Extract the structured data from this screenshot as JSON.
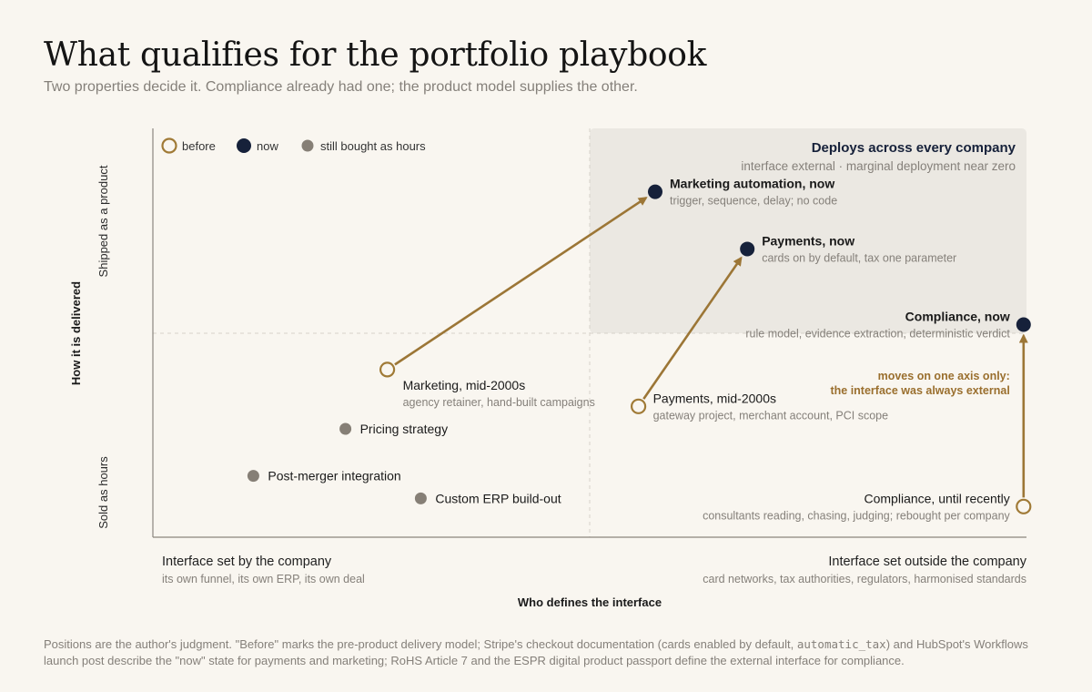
{
  "header": {
    "title": "What qualifies for the portfolio playbook",
    "subtitle": "Two properties decide it. Compliance already had one; the product model supplies the other."
  },
  "footnote": {
    "part1": "Positions are the author's judgment. \"Before\" marks the pre-product delivery model; Stripe's checkout documentation (cards enabled by default, ",
    "code": "automatic_tax",
    "part2": ") and HubSpot's Workflows launch post describe the \"now\" state for payments and marketing; RoHS Article 7 and the ESPR digital product passport define the external interface for compliance."
  },
  "colors": {
    "before": "#a07a36",
    "now": "#16213a",
    "hours": "#867f76",
    "arrow": "#9c7636",
    "annotation": "#9a6f2e",
    "quadrant": "#ebe8e2"
  },
  "chart_data": {
    "type": "scatter",
    "xlabel": "Who defines the interface",
    "ylabel": "How it is delivered",
    "x_scale": [
      "Interface set by the company",
      "Interface set outside the company"
    ],
    "y_scale": [
      "Sold as hours",
      "Shipped as a product"
    ],
    "x_ends": [
      {
        "label": "Interface set by the company",
        "sub": "its own funnel, its own ERP, its own deal"
      },
      {
        "label": "Interface set outside the company",
        "sub": "card networks, tax authorities, regulators, harmonised standards"
      }
    ],
    "y_ends": {
      "low": "Sold as hours",
      "high": "Shipped as a product"
    },
    "legend": {
      "position": "top-left",
      "items": [
        {
          "key": "before",
          "label": "before"
        },
        {
          "key": "now",
          "label": "now"
        },
        {
          "key": "hours",
          "label": "still bought as hours"
        }
      ]
    },
    "quadrant": {
      "title": "Deploys across every company",
      "sub": "interface external · marginal deployment near zero"
    },
    "points": [
      {
        "id": "marketing-now",
        "kind": "now",
        "x": 0.6,
        "y": 0.845,
        "label": "Marketing automation, now",
        "sub": "trigger, sequence, delay; no code",
        "anchor": "right"
      },
      {
        "id": "payments-now",
        "kind": "now",
        "x": 0.71,
        "y": 0.705,
        "label": "Payments, now",
        "sub": "cards on by default, tax one parameter",
        "anchor": "right"
      },
      {
        "id": "compliance-now",
        "kind": "now",
        "x": 1.04,
        "y": 0.52,
        "label": "Compliance, now",
        "sub": "rule model, evidence extraction, deterministic verdict",
        "anchor": "left"
      },
      {
        "id": "marketing-before",
        "kind": "before",
        "x": 0.28,
        "y": 0.41,
        "label": "Marketing, mid-2000s",
        "sub": "agency retainer, hand-built campaigns",
        "anchor": "below-right"
      },
      {
        "id": "payments-before",
        "kind": "before",
        "x": 0.58,
        "y": 0.32,
        "label": "Payments, mid-2000s",
        "sub": "gateway project, merchant account, PCI scope",
        "anchor": "right"
      },
      {
        "id": "compliance-before",
        "kind": "before",
        "x": 1.04,
        "y": 0.075,
        "label": "Compliance, until recently",
        "sub": "consultants reading, chasing, judging; rebought per company",
        "anchor": "left"
      },
      {
        "id": "pricing-strategy",
        "kind": "hours",
        "x": 0.23,
        "y": 0.265,
        "label": "Pricing strategy",
        "anchor": "right"
      },
      {
        "id": "post-merger",
        "kind": "hours",
        "x": 0.12,
        "y": 0.15,
        "label": "Post-merger integration",
        "anchor": "right"
      },
      {
        "id": "custom-erp",
        "kind": "hours",
        "x": 0.32,
        "y": 0.095,
        "label": "Custom ERP build-out",
        "anchor": "right"
      }
    ],
    "arrows": [
      {
        "from": "marketing-before",
        "to": "marketing-now"
      },
      {
        "from": "payments-before",
        "to": "payments-now"
      },
      {
        "from": "compliance-before",
        "to": "compliance-now"
      }
    ],
    "annotations": [
      {
        "lines": [
          "moves on one axis only:",
          "the interface was always external"
        ],
        "near": "compliance-before"
      }
    ]
  }
}
